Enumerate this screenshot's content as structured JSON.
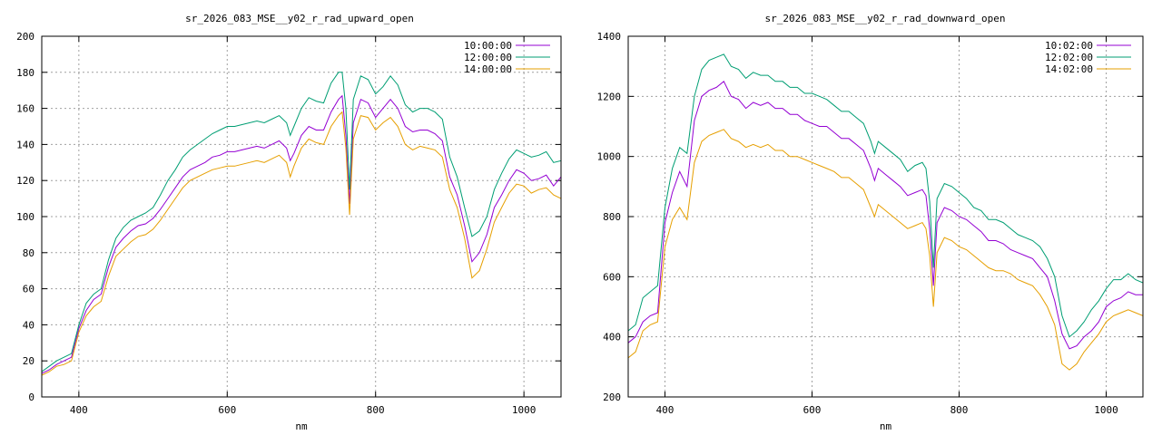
{
  "chart_data": [
    {
      "type": "line",
      "title": "sr_2026_083_MSE__y02_r_rad_upward_open",
      "xlabel": "nm",
      "ylabel": "",
      "xlim": [
        350,
        1050
      ],
      "ylim": [
        0,
        200
      ],
      "xticks": [
        400,
        600,
        800,
        1000
      ],
      "yticks": [
        0,
        20,
        40,
        60,
        80,
        100,
        120,
        140,
        160,
        180,
        200
      ],
      "grid": true,
      "legend": "top-right",
      "x": [
        350,
        360,
        370,
        380,
        390,
        400,
        410,
        420,
        430,
        440,
        450,
        460,
        470,
        480,
        490,
        500,
        510,
        520,
        530,
        540,
        550,
        560,
        570,
        580,
        590,
        600,
        610,
        620,
        630,
        640,
        650,
        660,
        670,
        680,
        685,
        690,
        700,
        710,
        720,
        730,
        740,
        750,
        755,
        760,
        765,
        770,
        780,
        790,
        800,
        810,
        820,
        830,
        840,
        850,
        860,
        870,
        880,
        890,
        900,
        910,
        920,
        930,
        940,
        950,
        960,
        970,
        980,
        990,
        1000,
        1010,
        1020,
        1030,
        1040,
        1050
      ],
      "series": [
        {
          "name": "10:00:00",
          "color": "#9400d3",
          "values": [
            13,
            15,
            18,
            20,
            22,
            38,
            48,
            54,
            57,
            72,
            83,
            88,
            92,
            95,
            96,
            99,
            104,
            110,
            116,
            122,
            126,
            128,
            130,
            133,
            134,
            136,
            136,
            137,
            138,
            139,
            138,
            140,
            142,
            138,
            131,
            135,
            145,
            150,
            148,
            148,
            158,
            165,
            167,
            145,
            107,
            152,
            165,
            163,
            155,
            160,
            165,
            160,
            150,
            147,
            148,
            148,
            146,
            142,
            122,
            112,
            95,
            75,
            80,
            90,
            105,
            112,
            120,
            126,
            124,
            120,
            121,
            123,
            117,
            122
          ]
        },
        {
          "name": "12:00:00",
          "color": "#009e73",
          "values": [
            14,
            17,
            20,
            22,
            24,
            40,
            52,
            57,
            60,
            76,
            88,
            94,
            98,
            100,
            102,
            105,
            112,
            120,
            126,
            133,
            137,
            140,
            143,
            146,
            148,
            150,
            150,
            151,
            152,
            153,
            152,
            154,
            156,
            152,
            145,
            150,
            160,
            166,
            164,
            163,
            174,
            180,
            180,
            160,
            115,
            165,
            178,
            176,
            168,
            172,
            178,
            173,
            162,
            158,
            160,
            160,
            158,
            154,
            133,
            122,
            105,
            89,
            92,
            100,
            115,
            124,
            132,
            137,
            135,
            133,
            134,
            136,
            130,
            131
          ]
        },
        {
          "name": "14:00:00",
          "color": "#e69f00",
          "values": [
            12,
            14,
            17,
            18,
            20,
            36,
            45,
            50,
            53,
            67,
            78,
            82,
            86,
            89,
            90,
            93,
            98,
            104,
            110,
            116,
            120,
            122,
            124,
            126,
            127,
            128,
            128,
            129,
            130,
            131,
            130,
            132,
            134,
            130,
            122,
            128,
            138,
            143,
            141,
            140,
            150,
            156,
            158,
            138,
            101,
            143,
            156,
            155,
            148,
            152,
            155,
            150,
            140,
            137,
            139,
            138,
            137,
            133,
            115,
            105,
            88,
            66,
            70,
            82,
            97,
            105,
            113,
            118,
            117,
            113,
            115,
            116,
            112,
            110
          ]
        }
      ]
    },
    {
      "type": "line",
      "title": "sr_2026_083_MSE__y02_r_rad_downward_open",
      "xlabel": "nm",
      "ylabel": "",
      "xlim": [
        350,
        1050
      ],
      "ylim": [
        200,
        1400
      ],
      "xticks": [
        400,
        600,
        800,
        1000
      ],
      "yticks": [
        200,
        400,
        600,
        800,
        1000,
        1200,
        1400
      ],
      "grid": true,
      "legend": "top-right",
      "x": [
        350,
        360,
        370,
        380,
        390,
        400,
        410,
        420,
        430,
        440,
        450,
        460,
        470,
        480,
        490,
        500,
        510,
        520,
        530,
        540,
        550,
        560,
        570,
        580,
        590,
        600,
        610,
        620,
        630,
        640,
        650,
        660,
        670,
        680,
        685,
        690,
        700,
        710,
        720,
        730,
        740,
        750,
        755,
        760,
        765,
        770,
        780,
        790,
        800,
        810,
        820,
        830,
        840,
        850,
        860,
        870,
        880,
        890,
        900,
        910,
        920,
        930,
        940,
        950,
        960,
        970,
        980,
        990,
        1000,
        1010,
        1020,
        1030,
        1040,
        1050
      ],
      "series": [
        {
          "name": "10:02:00",
          "color": "#9400d3",
          "values": [
            380,
            400,
            450,
            470,
            480,
            780,
            880,
            950,
            900,
            1120,
            1200,
            1220,
            1230,
            1250,
            1200,
            1190,
            1160,
            1180,
            1170,
            1180,
            1160,
            1160,
            1140,
            1140,
            1120,
            1110,
            1100,
            1100,
            1080,
            1060,
            1060,
            1040,
            1020,
            960,
            920,
            960,
            940,
            920,
            900,
            870,
            880,
            890,
            870,
            760,
            570,
            780,
            830,
            820,
            800,
            790,
            770,
            750,
            720,
            720,
            710,
            690,
            680,
            670,
            660,
            630,
            600,
            520,
            410,
            360,
            370,
            400,
            420,
            450,
            500,
            520,
            530,
            550,
            540,
            540
          ]
        },
        {
          "name": "12:02:00",
          "color": "#009e73",
          "values": [
            420,
            440,
            530,
            550,
            570,
            830,
            960,
            1030,
            1010,
            1200,
            1290,
            1320,
            1330,
            1340,
            1300,
            1290,
            1260,
            1280,
            1270,
            1270,
            1250,
            1250,
            1230,
            1230,
            1210,
            1210,
            1200,
            1190,
            1170,
            1150,
            1150,
            1130,
            1110,
            1050,
            1010,
            1050,
            1030,
            1010,
            990,
            950,
            970,
            980,
            960,
            850,
            630,
            860,
            910,
            900,
            880,
            860,
            830,
            820,
            790,
            790,
            780,
            760,
            740,
            730,
            720,
            700,
            660,
            600,
            470,
            400,
            420,
            450,
            490,
            520,
            560,
            590,
            590,
            610,
            590,
            580
          ]
        },
        {
          "name": "14:02:00",
          "color": "#e69f00",
          "values": [
            330,
            350,
            420,
            440,
            450,
            700,
            790,
            830,
            790,
            980,
            1050,
            1070,
            1080,
            1090,
            1060,
            1050,
            1030,
            1040,
            1030,
            1040,
            1020,
            1020,
            1000,
            1000,
            990,
            980,
            970,
            960,
            950,
            930,
            930,
            910,
            890,
            830,
            800,
            840,
            820,
            800,
            780,
            760,
            770,
            780,
            760,
            670,
            500,
            680,
            730,
            720,
            700,
            690,
            670,
            650,
            630,
            620,
            620,
            610,
            590,
            580,
            570,
            540,
            500,
            440,
            310,
            290,
            310,
            350,
            380,
            410,
            450,
            470,
            480,
            490,
            480,
            470
          ]
        }
      ]
    }
  ]
}
